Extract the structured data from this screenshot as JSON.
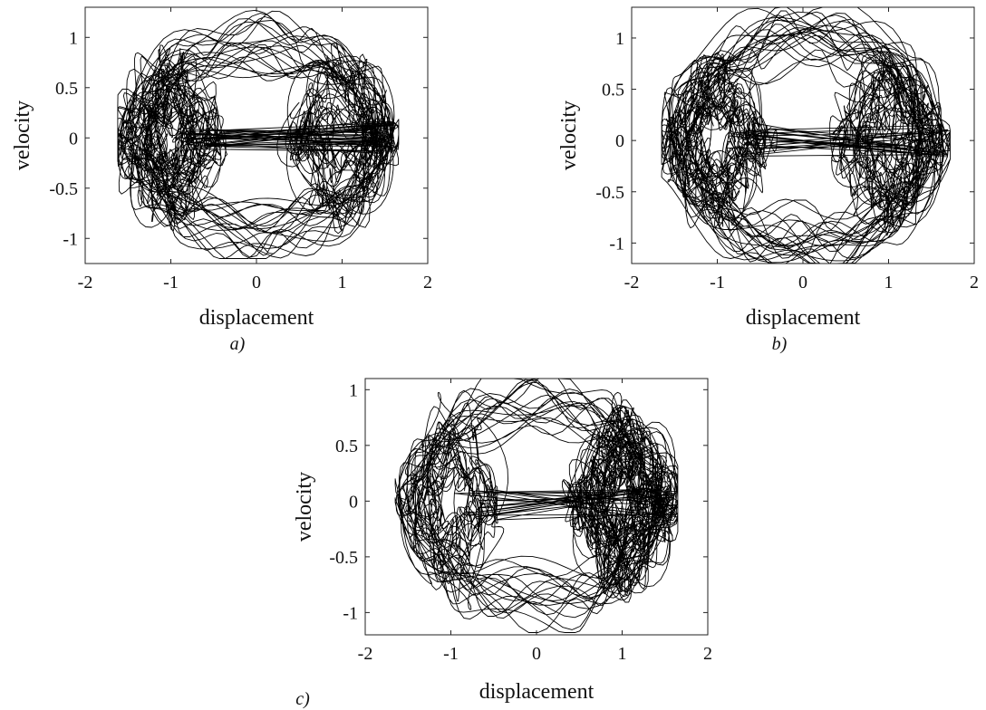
{
  "chart_data": [
    {
      "panel": "a)",
      "type": "line",
      "xlabel": "displacement",
      "ylabel": "velocity",
      "xlim": [
        -2,
        2
      ],
      "ylim": [
        -1.25,
        1.3
      ],
      "xticks": [
        -2,
        -1,
        0,
        1,
        2
      ],
      "yticks": [
        -1,
        -0.5,
        0,
        0.5,
        1
      ],
      "xtick_labels": [
        "-2",
        "-1",
        "0",
        "1",
        "2"
      ],
      "ytick_labels": [
        "-1",
        "-0.5",
        "0",
        "0.5",
        "1"
      ],
      "grid": false,
      "line_color": "#000000",
      "trajectory": {
        "x_extent": [
          -1.62,
          1.66
        ],
        "y_extent": [
          -1.2,
          1.28
        ],
        "well_centers": [
          -1,
          1
        ]
      }
    },
    {
      "panel": "b)",
      "type": "line",
      "xlabel": "displacement",
      "ylabel": "velocity",
      "xlim": [
        -2,
        2
      ],
      "ylim": [
        -1.2,
        1.3
      ],
      "xticks": [
        -2,
        -1,
        0,
        1,
        2
      ],
      "yticks": [
        -1,
        -0.5,
        0,
        0.5,
        1
      ],
      "xtick_labels": [
        "-2",
        "-1",
        "0",
        "1",
        "2"
      ],
      "ytick_labels": [
        "-1",
        "-0.5",
        "0",
        "0.5",
        "1"
      ],
      "grid": false,
      "line_color": "#000000",
      "trajectory": {
        "x_extent": [
          -1.65,
          1.72
        ],
        "y_extent": [
          -1.2,
          1.3
        ],
        "well_centers": [
          -1,
          1
        ]
      }
    },
    {
      "panel": "c)",
      "type": "line",
      "xlabel": "displacement",
      "ylabel": "velocity",
      "xlim": [
        -2,
        2
      ],
      "ylim": [
        -1.2,
        1.1
      ],
      "xticks": [
        -2,
        -1,
        0,
        1,
        2
      ],
      "yticks": [
        -1,
        -0.5,
        0,
        0.5,
        1
      ],
      "xtick_labels": [
        "-2",
        "-1",
        "0",
        "1",
        "2"
      ],
      "ytick_labels": [
        "-1",
        "-0.5",
        "0",
        "0.5",
        "1"
      ],
      "grid": false,
      "line_color": "#000000",
      "trajectory": {
        "x_extent": [
          -1.65,
          1.65
        ],
        "y_extent": [
          -1.18,
          1.1
        ],
        "well_centers": [
          -1,
          1
        ]
      }
    }
  ]
}
